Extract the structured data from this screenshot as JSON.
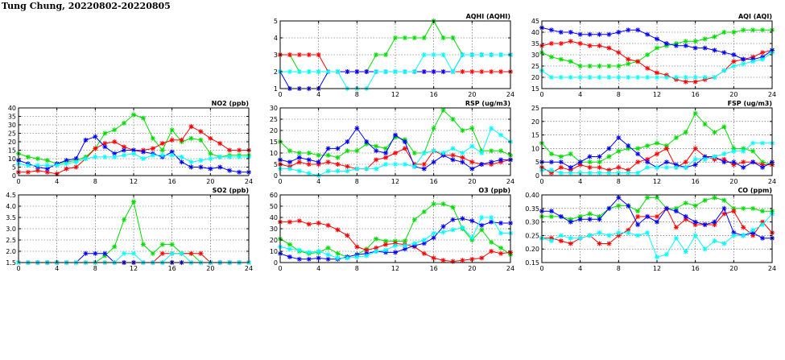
{
  "header": {
    "title": "Tung Chung, 20220802-20220805"
  },
  "series_colors": [
    "#00dd00",
    "#ff0000",
    "#0000ff",
    "#00ffff"
  ],
  "chart_data": [
    {
      "id": "aqhi",
      "type": "line",
      "title": "AQHI (AQHI)",
      "xlim": [
        0,
        24
      ],
      "xticks": [
        0,
        4,
        8,
        12,
        16,
        20,
        24
      ],
      "ylim": [
        1,
        5
      ],
      "yticks": [
        1,
        2,
        3,
        4,
        5
      ],
      "grid": true,
      "series": [
        {
          "values": [
            3,
            3,
            2,
            2,
            2,
            2,
            2,
            2,
            2,
            2,
            3,
            3,
            4,
            4,
            4,
            4,
            5,
            4,
            4,
            3,
            3,
            3,
            3,
            3,
            3
          ]
        },
        {
          "values": [
            3,
            3,
            3,
            3,
            3,
            2,
            2,
            2,
            2,
            2,
            2,
            2,
            2,
            2,
            2,
            2,
            2,
            2,
            2,
            2,
            2,
            2,
            2,
            2,
            2
          ]
        },
        {
          "values": [
            2,
            1,
            1,
            1,
            1,
            2,
            2,
            2,
            2,
            2,
            2,
            2,
            2,
            2,
            2,
            2,
            2,
            2,
            2,
            3,
            3,
            3,
            3,
            3,
            3
          ]
        },
        {
          "values": [
            2,
            2,
            2,
            2,
            2,
            2,
            2,
            1,
            1,
            1,
            2,
            2,
            2,
            2,
            2,
            3,
            3,
            3,
            2,
            3,
            3,
            3,
            3,
            3,
            3
          ]
        }
      ]
    },
    {
      "id": "aqi",
      "type": "line",
      "title": "AQI (AQI)",
      "xlim": [
        0,
        24
      ],
      "xticks": [
        0,
        4,
        8,
        12,
        16,
        20,
        24
      ],
      "ylim": [
        15,
        45
      ],
      "yticks": [
        15,
        20,
        25,
        30,
        35,
        40,
        45
      ],
      "grid": true,
      "series": [
        {
          "values": [
            31,
            29,
            28,
            27,
            25,
            25,
            25,
            25,
            25,
            26,
            27,
            30,
            33,
            34,
            35,
            36,
            36,
            37,
            38,
            40,
            40,
            41,
            41,
            41,
            41
          ]
        },
        {
          "values": [
            34,
            35,
            35,
            36,
            35,
            34,
            34,
            33,
            31,
            28,
            27,
            24,
            22,
            21,
            19,
            18,
            18,
            19,
            20,
            23,
            27,
            28,
            29,
            31,
            32
          ]
        },
        {
          "values": [
            42,
            41,
            40,
            40,
            39,
            39,
            39,
            39,
            40,
            41,
            41,
            39,
            37,
            35,
            34,
            34,
            33,
            33,
            32,
            31,
            30,
            28,
            28,
            29,
            32
          ]
        },
        {
          "values": [
            23,
            20,
            20,
            20,
            20,
            20,
            20,
            20,
            20,
            20,
            20,
            20,
            20,
            20,
            20,
            20,
            20,
            20,
            20,
            23,
            25,
            26,
            27,
            28,
            31
          ]
        }
      ]
    },
    {
      "id": "no2",
      "type": "line",
      "title": "NO2 (ppb)",
      "xlim": [
        0,
        24
      ],
      "xticks": [
        0,
        4,
        8,
        12,
        16,
        20,
        24
      ],
      "ylim": [
        0,
        40
      ],
      "yticks": [
        0,
        5,
        10,
        15,
        20,
        25,
        30,
        35,
        40
      ],
      "grid": true,
      "series": [
        {
          "values": [
            13,
            11,
            10,
            9,
            7,
            8,
            9,
            11,
            16,
            25,
            27,
            31,
            36,
            34,
            22,
            15,
            27,
            20,
            22,
            21,
            13,
            11,
            12,
            12,
            12
          ]
        },
        {
          "values": [
            2,
            2,
            3,
            2,
            1,
            4,
            5,
            10,
            16,
            19,
            20,
            17,
            15,
            15,
            16,
            19,
            21,
            21,
            29,
            26,
            22,
            19,
            15,
            15,
            15
          ]
        },
        {
          "values": [
            9,
            7,
            5,
            4,
            7,
            9,
            10,
            21,
            23,
            17,
            13,
            15,
            15,
            14,
            13,
            11,
            14,
            8,
            5,
            5,
            4,
            5,
            3,
            2,
            2
          ]
        },
        {
          "values": [
            7,
            6,
            6,
            6,
            6,
            7,
            8,
            10,
            11,
            11,
            11,
            12,
            13,
            10,
            12,
            12,
            12,
            11,
            8,
            9,
            10,
            11,
            11,
            11,
            11
          ]
        }
      ]
    },
    {
      "id": "rsp",
      "type": "line",
      "title": "RSP (ug/m3)",
      "xlim": [
        0,
        24
      ],
      "xticks": [
        0,
        4,
        8,
        12,
        16,
        20,
        24
      ],
      "ylim": [
        0,
        30
      ],
      "yticks": [
        0,
        5,
        10,
        15,
        20,
        25,
        30
      ],
      "grid": true,
      "series": [
        {
          "values": [
            15,
            11,
            10,
            10,
            9,
            9,
            8,
            11,
            11,
            14,
            13,
            12,
            17,
            16,
            10,
            10,
            21,
            29,
            25,
            20,
            21,
            11,
            11,
            11,
            9
          ]
        },
        {
          "values": [
            5,
            4,
            6,
            5,
            5,
            6,
            5,
            4,
            3,
            3,
            7,
            8,
            10,
            12,
            5,
            5,
            11,
            9,
            9,
            8,
            6,
            5,
            5,
            6,
            7
          ]
        },
        {
          "values": [
            7,
            6,
            8,
            7,
            6,
            12,
            12,
            15,
            21,
            15,
            11,
            10,
            18,
            15,
            4,
            3,
            6,
            9,
            7,
            6,
            3,
            5,
            6,
            7,
            7
          ]
        },
        {
          "values": [
            3,
            3,
            2,
            1,
            0,
            2,
            2,
            2,
            3,
            3,
            3,
            5,
            5,
            5,
            4,
            10,
            11,
            10,
            12,
            10,
            13,
            10,
            21,
            18,
            15
          ]
        }
      ]
    },
    {
      "id": "fsp",
      "type": "line",
      "title": "FSP (ug/m3)",
      "xlim": [
        0,
        24
      ],
      "xticks": [
        0,
        4,
        8,
        12,
        16,
        20,
        24
      ],
      "ylim": [
        0,
        25
      ],
      "yticks": [
        0,
        5,
        10,
        15,
        20,
        25
      ],
      "grid": true,
      "series": [
        {
          "values": [
            12,
            8,
            7,
            8,
            5,
            5,
            5,
            7,
            9,
            10,
            10,
            11,
            12,
            11,
            14,
            16,
            23,
            19,
            16,
            18,
            10,
            10,
            9,
            5,
            4
          ]
        },
        {
          "values": [
            3,
            1,
            3,
            2,
            4,
            3,
            3,
            2,
            3,
            2,
            5,
            6,
            8,
            10,
            3,
            5,
            10,
            7,
            6,
            6,
            4,
            5,
            5,
            4,
            4
          ]
        },
        {
          "values": [
            5,
            5,
            5,
            3,
            5,
            7,
            7,
            10,
            14,
            11,
            8,
            5,
            3,
            5,
            4,
            3,
            4,
            7,
            7,
            5,
            5,
            3,
            5,
            3,
            5
          ]
        },
        {
          "values": [
            2,
            2,
            1,
            1,
            1,
            1,
            1,
            1,
            1,
            1,
            1,
            3,
            3,
            3,
            3,
            3,
            6,
            6,
            7,
            8,
            9,
            9,
            12,
            12,
            12
          ]
        }
      ]
    },
    {
      "id": "so2",
      "type": "line",
      "title": "SO2 (ppb)",
      "xlim": [
        0,
        24
      ],
      "xticks": [
        0,
        4,
        8,
        12,
        16,
        20,
        24
      ],
      "ylim": [
        1.5,
        4.5
      ],
      "yticks": [
        1.5,
        2.0,
        2.5,
        3.0,
        3.5,
        4.0,
        4.5
      ],
      "grid": true,
      "series": [
        {
          "values": [
            1.5,
            1.5,
            1.5,
            1.5,
            1.5,
            1.5,
            1.5,
            1.5,
            1.5,
            1.8,
            2.2,
            3.4,
            4.2,
            2.3,
            1.9,
            2.3,
            2.3,
            1.9,
            1.9,
            1.5,
            1.5,
            1.5,
            1.5,
            1.5,
            1.5
          ]
        },
        {
          "values": [
            1.5,
            1.5,
            1.5,
            1.5,
            1.5,
            1.5,
            1.5,
            1.5,
            1.5,
            1.5,
            1.5,
            1.5,
            1.5,
            1.5,
            1.5,
            1.9,
            1.9,
            1.9,
            1.9,
            1.9,
            1.5,
            1.5,
            1.5,
            1.5,
            1.5
          ]
        },
        {
          "values": [
            1.5,
            1.5,
            1.5,
            1.5,
            1.5,
            1.5,
            1.5,
            1.9,
            1.9,
            1.9,
            1.5,
            1.5,
            1.5,
            1.5,
            1.5,
            1.5,
            1.5,
            1.5,
            1.5,
            1.5,
            1.5,
            1.5,
            1.5,
            1.5,
            1.5
          ]
        },
        {
          "values": [
            1.5,
            1.5,
            1.5,
            1.5,
            1.5,
            1.5,
            1.5,
            1.5,
            1.5,
            1.5,
            1.5,
            1.9,
            1.9,
            1.5,
            1.5,
            1.5,
            1.9,
            1.9,
            1.5,
            1.5,
            1.5,
            1.5,
            1.5,
            1.5,
            1.5
          ]
        }
      ]
    },
    {
      "id": "o3",
      "type": "line",
      "title": "O3 (ppb)",
      "xlim": [
        0,
        24
      ],
      "xticks": [
        0,
        4,
        8,
        12,
        16,
        20,
        24
      ],
      "ylim": [
        0,
        60
      ],
      "yticks": [
        0,
        10,
        20,
        30,
        40,
        50,
        60
      ],
      "grid": true,
      "series": [
        {
          "values": [
            21,
            16,
            10,
            8,
            9,
            13,
            8,
            5,
            7,
            12,
            21,
            19,
            19,
            19,
            38,
            45,
            52,
            52,
            49,
            30,
            20,
            29,
            18,
            13,
            7
          ]
        },
        {
          "values": [
            36,
            36,
            37,
            34,
            35,
            33,
            29,
            24,
            14,
            11,
            13,
            16,
            17,
            16,
            14,
            8,
            4,
            2,
            1,
            2,
            3,
            4,
            10,
            8,
            9
          ]
        },
        {
          "values": [
            8,
            5,
            3,
            3,
            4,
            3,
            3,
            5,
            7,
            8,
            10,
            9,
            9,
            12,
            15,
            17,
            22,
            32,
            38,
            39,
            37,
            33,
            36,
            35,
            35
          ]
        },
        {
          "values": [
            14,
            12,
            11,
            9,
            10,
            7,
            4,
            4,
            5,
            6,
            10,
            11,
            15,
            15,
            17,
            20,
            26,
            27,
            29,
            31,
            22,
            40,
            40,
            26,
            26
          ]
        }
      ]
    },
    {
      "id": "co",
      "type": "line",
      "title": "CO (ppm)",
      "xlim": [
        0,
        24
      ],
      "xticks": [
        0,
        4,
        8,
        12,
        16,
        20,
        24
      ],
      "ylim": [
        0.15,
        0.4
      ],
      "yticks": [
        0.15,
        0.2,
        0.25,
        0.3,
        0.35,
        0.4
      ],
      "grid": true,
      "series": [
        {
          "values": [
            0.32,
            0.32,
            0.32,
            0.31,
            0.32,
            0.33,
            0.32,
            0.35,
            0.36,
            0.36,
            0.34,
            0.39,
            0.39,
            0.35,
            0.35,
            0.37,
            0.36,
            0.38,
            0.39,
            0.38,
            0.35,
            0.35,
            0.35,
            0.34,
            0.34
          ]
        },
        {
          "values": [
            0.24,
            0.24,
            0.23,
            0.22,
            0.24,
            0.25,
            0.22,
            0.22,
            0.25,
            0.27,
            0.32,
            0.32,
            0.32,
            0.35,
            0.28,
            0.31,
            0.29,
            0.29,
            0.29,
            0.33,
            0.34,
            0.28,
            0.25,
            0.3,
            0.26
          ]
        },
        {
          "values": [
            0.34,
            0.34,
            0.32,
            0.3,
            0.31,
            0.31,
            0.31,
            0.35,
            0.39,
            0.36,
            0.29,
            0.32,
            0.3,
            0.35,
            0.34,
            0.32,
            0.3,
            0.29,
            0.3,
            0.35,
            0.26,
            0.25,
            0.26,
            0.24,
            0.24
          ]
        },
        {
          "values": [
            0.24,
            0.23,
            0.25,
            0.24,
            0.24,
            0.25,
            0.26,
            0.25,
            0.26,
            0.26,
            0.25,
            0.26,
            0.17,
            0.18,
            0.24,
            0.19,
            0.25,
            0.2,
            0.23,
            0.22,
            0.25,
            0.25,
            0.27,
            0.29,
            0.33
          ]
        }
      ]
    }
  ]
}
